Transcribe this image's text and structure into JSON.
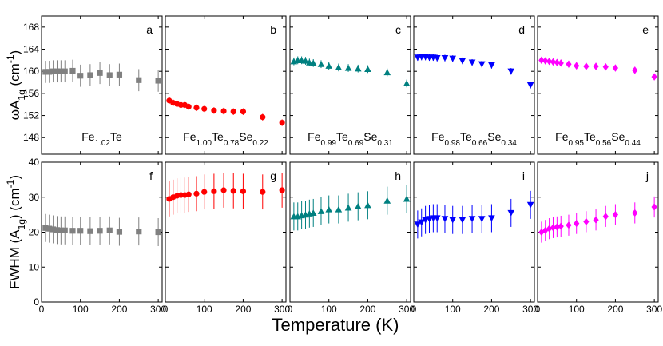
{
  "xlabel": "Temperature (K)",
  "chart_data": [
    {
      "type": "scatter",
      "label": "a",
      "annotation": "Fe1.02Te",
      "ylabel": "ωA1g (cm-1)",
      "color": "#808080",
      "marker": "square",
      "xlim": [
        0,
        310
      ],
      "ylim": [
        145,
        170
      ],
      "xticks": [
        0,
        100,
        200,
        300
      ],
      "yticks": [
        148,
        152,
        156,
        160,
        164,
        168
      ],
      "x": [
        10,
        20,
        30,
        40,
        50,
        60,
        80,
        100,
        125,
        150,
        175,
        200,
        250,
        300
      ],
      "values": [
        159.9,
        159.9,
        160,
        160,
        160,
        160,
        160.1,
        159.2,
        159.3,
        159.7,
        159.3,
        159.4,
        158.4,
        158.3
      ],
      "errors": [
        2,
        2,
        2,
        2,
        2,
        2,
        2,
        2,
        2,
        2,
        2,
        2,
        2,
        2
      ]
    },
    {
      "type": "scatter",
      "label": "b",
      "annotation": "Fe1.00Te0.78Se0.22",
      "color": "#ff0000",
      "marker": "circle",
      "xlim": [
        0,
        310
      ],
      "ylim": [
        145,
        170
      ],
      "xticks": [
        0,
        100,
        200,
        300
      ],
      "yticks": [
        148,
        152,
        156,
        160,
        164,
        168
      ],
      "x": [
        10,
        20,
        30,
        40,
        50,
        60,
        80,
        100,
        125,
        150,
        175,
        200,
        250,
        300
      ],
      "values": [
        154.7,
        154.3,
        154.1,
        153.9,
        153.9,
        153.6,
        153.4,
        153.2,
        152.9,
        152.8,
        152.7,
        152.7,
        151.7,
        150.7
      ],
      "errors": [
        0.6,
        0.6,
        0.6,
        0.6,
        0.6,
        0.6,
        0.6,
        0.6,
        0.6,
        0.6,
        0.6,
        0.6,
        0.6,
        0.6
      ]
    },
    {
      "type": "scatter",
      "label": "c",
      "annotation": "Fe0.99Te0.69Se0.31",
      "color": "#008080",
      "marker": "triangle",
      "xlim": [
        0,
        310
      ],
      "ylim": [
        145,
        170
      ],
      "xticks": [
        0,
        100,
        200,
        300
      ],
      "yticks": [
        148,
        152,
        156,
        160,
        164,
        168
      ],
      "x": [
        10,
        20,
        30,
        40,
        50,
        60,
        80,
        100,
        125,
        150,
        175,
        200,
        250,
        300
      ],
      "values": [
        161.8,
        162,
        162,
        161.9,
        161.6,
        161.5,
        161.3,
        161,
        160.7,
        160.6,
        160.5,
        160.4,
        159.8,
        157.8
      ],
      "errors": [
        0.7,
        0.7,
        0.7,
        0.7,
        0.7,
        0.7,
        0.7,
        0.7,
        0.7,
        0.7,
        0.7,
        0.7,
        0.7,
        0.7
      ]
    },
    {
      "type": "scatter",
      "label": "d",
      "annotation": "Fe0.98Te0.66Se0.34",
      "color": "#0000ff",
      "marker": "triangle-down",
      "xlim": [
        0,
        310
      ],
      "ylim": [
        145,
        170
      ],
      "xticks": [
        0,
        100,
        200,
        300
      ],
      "yticks": [
        148,
        152,
        156,
        160,
        164,
        168
      ],
      "x": [
        10,
        20,
        30,
        40,
        50,
        60,
        80,
        100,
        125,
        150,
        175,
        200,
        250,
        300
      ],
      "values": [
        162.5,
        162.6,
        162.6,
        162.5,
        162.5,
        162.4,
        162.4,
        162.3,
        161.9,
        161.6,
        161.3,
        161.1,
        160,
        157.5
      ],
      "errors": [
        0.6,
        0.6,
        0.6,
        0.6,
        0.6,
        0.6,
        0.6,
        0.6,
        0.6,
        0.6,
        0.6,
        0.6,
        0.6,
        0.6
      ]
    },
    {
      "type": "scatter",
      "label": "e",
      "annotation": "Fe0.95Te0.56Se0.44",
      "color": "#ff00ff",
      "marker": "diamond",
      "xlim": [
        0,
        310
      ],
      "ylim": [
        145,
        170
      ],
      "xticks": [
        0,
        100,
        200,
        300
      ],
      "yticks": [
        148,
        152,
        156,
        160,
        164,
        168
      ],
      "x": [
        10,
        20,
        30,
        40,
        50,
        60,
        80,
        100,
        125,
        150,
        175,
        200,
        250,
        300
      ],
      "values": [
        162,
        161.9,
        161.8,
        161.7,
        161.6,
        161.5,
        161.3,
        161,
        160.9,
        160.9,
        160.8,
        160.6,
        160.2,
        159
      ],
      "errors": [
        0.6,
        0.6,
        0.6,
        0.6,
        0.6,
        0.6,
        0.6,
        0.6,
        0.6,
        0.6,
        0.6,
        0.6,
        0.6,
        0.6
      ]
    },
    {
      "type": "scatter",
      "label": "f",
      "ylabel": "FWHM (A1g) (cm-1)",
      "color": "#808080",
      "marker": "square",
      "xlim": [
        0,
        310
      ],
      "ylim": [
        0,
        40
      ],
      "xticks": [
        0,
        100,
        200,
        300
      ],
      "yticks": [
        0,
        10,
        20,
        30,
        40
      ],
      "x": [
        10,
        20,
        30,
        40,
        50,
        60,
        80,
        100,
        125,
        150,
        175,
        200,
        250,
        300
      ],
      "values": [
        21.2,
        21,
        20.8,
        20.6,
        20.5,
        20.5,
        20.4,
        20.4,
        20.3,
        20.4,
        20.5,
        20.1,
        20.2,
        20
      ],
      "errors": [
        4,
        4,
        4,
        4,
        4,
        4,
        4,
        4,
        4,
        4,
        4,
        4,
        4,
        4
      ]
    },
    {
      "type": "scatter",
      "label": "g",
      "color": "#ff0000",
      "marker": "circle",
      "xlim": [
        0,
        310
      ],
      "ylim": [
        0,
        40
      ],
      "xticks": [
        0,
        100,
        200,
        300
      ],
      "yticks": [
        0,
        10,
        20,
        30,
        40
      ],
      "x": [
        10,
        20,
        30,
        40,
        50,
        60,
        80,
        100,
        125,
        150,
        175,
        200,
        250,
        300
      ],
      "values": [
        29.5,
        30,
        30.4,
        30.6,
        30.6,
        30.8,
        31,
        31.5,
        31.7,
        32,
        31.8,
        31.7,
        31.5,
        32
      ],
      "errors": [
        5,
        5,
        5,
        5,
        5,
        5,
        5,
        5,
        5,
        5,
        5,
        5,
        5,
        5
      ]
    },
    {
      "type": "scatter",
      "label": "h",
      "color": "#008080",
      "marker": "triangle",
      "xlim": [
        0,
        310
      ],
      "ylim": [
        0,
        40
      ],
      "xticks": [
        0,
        100,
        200,
        300
      ],
      "yticks": [
        0,
        10,
        20,
        30,
        40
      ],
      "x": [
        10,
        20,
        30,
        40,
        50,
        60,
        80,
        100,
        125,
        150,
        175,
        200,
        250,
        300
      ],
      "values": [
        24.5,
        24.5,
        24.8,
        25,
        25.3,
        25.5,
        26,
        26.5,
        26.5,
        27,
        27.4,
        27.7,
        29,
        29.5
      ],
      "errors": [
        4,
        4,
        4,
        4,
        4,
        4,
        4,
        4,
        4,
        4,
        4,
        4,
        4,
        4
      ]
    },
    {
      "type": "scatter",
      "label": "i",
      "color": "#0000ff",
      "marker": "triangle-down",
      "xlim": [
        0,
        310
      ],
      "ylim": [
        0,
        40
      ],
      "xticks": [
        0,
        100,
        200,
        300
      ],
      "yticks": [
        0,
        10,
        20,
        30,
        40
      ],
      "x": [
        10,
        20,
        30,
        40,
        50,
        60,
        80,
        100,
        125,
        150,
        175,
        200,
        250,
        300
      ],
      "values": [
        22.2,
        22.8,
        23.5,
        23.8,
        24,
        24,
        23.8,
        23.5,
        23.5,
        23.8,
        23.8,
        24,
        25.5,
        27.8
      ],
      "errors": [
        4,
        4,
        4,
        4,
        4,
        4,
        4,
        4,
        4,
        4,
        4,
        4,
        4,
        4
      ]
    },
    {
      "type": "scatter",
      "label": "j",
      "color": "#ff00ff",
      "marker": "diamond",
      "xlim": [
        0,
        310
      ],
      "ylim": [
        0,
        40
      ],
      "xticks": [
        0,
        100,
        200,
        300
      ],
      "yticks": [
        0,
        10,
        20,
        30,
        40
      ],
      "x": [
        10,
        20,
        30,
        40,
        50,
        60,
        80,
        100,
        125,
        150,
        175,
        200,
        250,
        300
      ],
      "values": [
        20,
        20.5,
        21,
        21.3,
        21.5,
        21.7,
        22,
        22.5,
        23,
        23.5,
        24.5,
        25,
        25.5,
        27.2
      ],
      "errors": [
        3,
        3,
        3,
        3,
        3,
        3,
        3,
        3,
        3,
        3,
        3,
        3,
        3,
        3
      ]
    }
  ]
}
